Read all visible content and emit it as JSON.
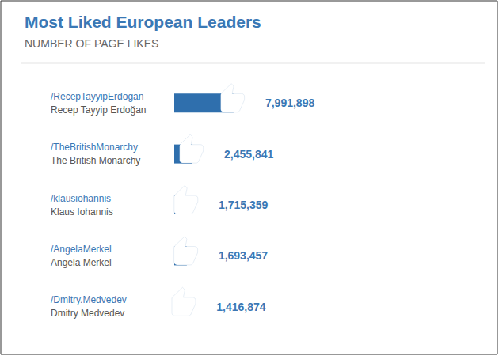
{
  "chart_data": {
    "type": "bar",
    "title": "Most Liked European Leaders",
    "subtitle": "NUMBER OF PAGE LIKES",
    "categories": [
      "Recep Tayyip Erdoğan",
      "The British Monarchy",
      "Klaus Iohannis",
      "Angela Merkel",
      "Dmitry Medvedev"
    ],
    "handles": [
      "/RecepTayyipErdogan",
      "/TheBritishMonarchy",
      "/klausiohannis",
      "/AngelaMerkel",
      "/Dmitry.Medvedev"
    ],
    "values": [
      7991898,
      2455841,
      1715359,
      1693457,
      1416874
    ],
    "value_labels": [
      "7,991,898",
      "2,455,841",
      "1,715,359",
      "1,693,457",
      "1,416,874"
    ],
    "color": "#2f6fad",
    "orientation": "horizontal",
    "data_labels": true,
    "tick_labels": "y",
    "grid": false
  }
}
